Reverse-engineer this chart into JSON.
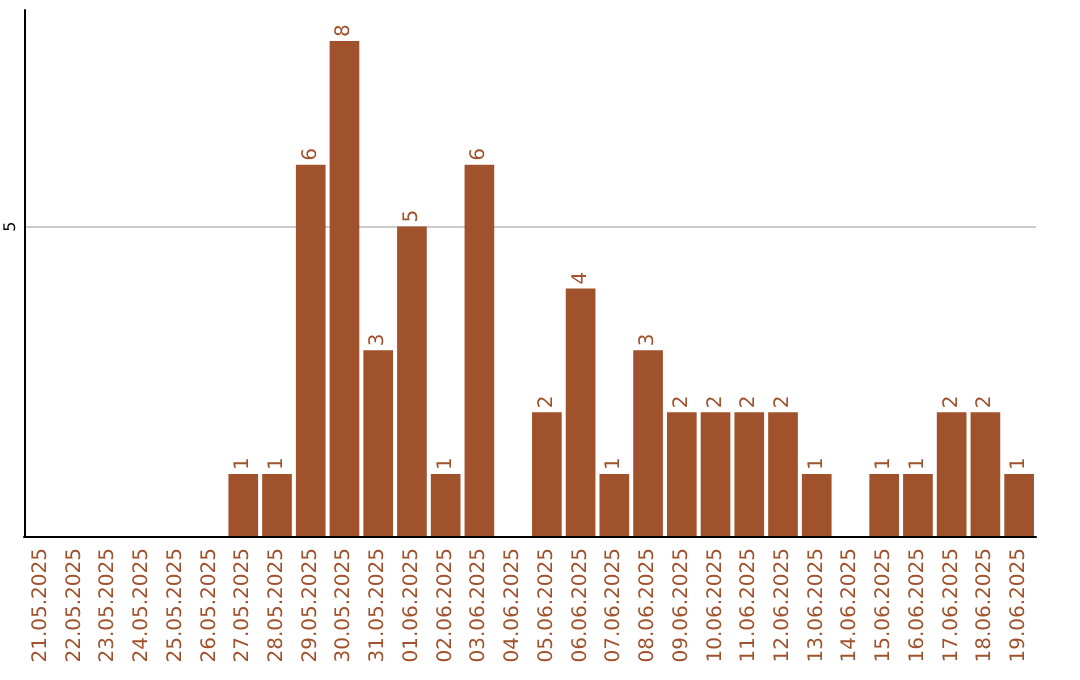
{
  "chart_data": {
    "type": "bar",
    "categories": [
      "21.05.2025",
      "22.05.2025",
      "23.05.2025",
      "24.05.2025",
      "25.05.2025",
      "26.05.2025",
      "27.05.2025",
      "28.05.2025",
      "29.05.2025",
      "30.05.2025",
      "31.05.2025",
      "01.06.2025",
      "02.06.2025",
      "03.06.2025",
      "04.06.2025",
      "05.06.2025",
      "06.06.2025",
      "07.06.2025",
      "08.06.2025",
      "09.06.2025",
      "10.06.2025",
      "11.06.2025",
      "12.06.2025",
      "13.06.2025",
      "14.06.2025",
      "15.06.2025",
      "16.06.2025",
      "17.06.2025",
      "18.06.2025",
      "19.06.2025"
    ],
    "values": [
      0,
      0,
      0,
      0,
      0,
      0,
      1,
      1,
      6,
      8,
      3,
      5,
      1,
      6,
      0,
      2,
      4,
      1,
      3,
      2,
      2,
      2,
      2,
      1,
      0,
      1,
      1,
      2,
      2,
      1
    ],
    "value_labels": [
      null,
      null,
      null,
      null,
      null,
      null,
      "1",
      "1",
      "6",
      "8",
      "3",
      "5",
      "1",
      "6",
      null,
      "2",
      "4",
      "1",
      "3",
      "2",
      "2",
      "2",
      "2",
      "1",
      null,
      "1",
      "1",
      "2",
      "2",
      "1"
    ],
    "color": "#a0522d",
    "ylim": [
      0,
      8.5
    ],
    "yticks": [
      5
    ],
    "grid": "y"
  }
}
